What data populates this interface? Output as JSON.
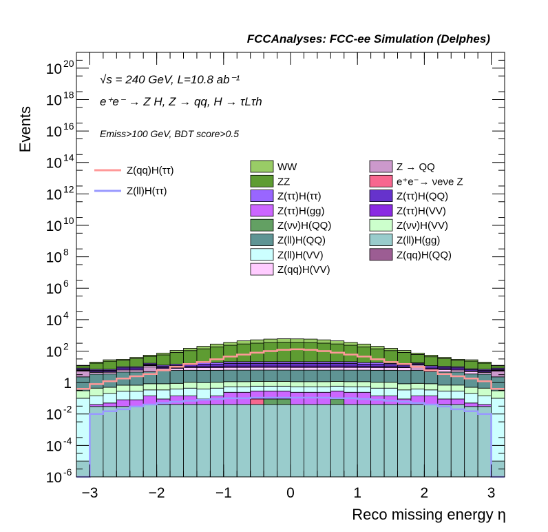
{
  "title": "FCCAnalyses: FCC-ee Simulation (Delphes)",
  "annotations": {
    "line1": "√s = 240 GeV, L=10.8 ab⁻¹",
    "line2": "e⁺e⁻ → Z H, Z → qq, H → τLτh",
    "line3": "Emiss>100 GeV, BDT score>0.5"
  },
  "chart_data": {
    "type": "bar",
    "xlabel": "Reco missing energy η",
    "ylabel": "Events",
    "xlim": [
      -3.2,
      3.2
    ],
    "ylim": [
      1e-06,
      1e+21
    ],
    "ylog": true,
    "xticks": [
      -3,
      -2,
      -1,
      0,
      1,
      2,
      3
    ],
    "xtick_labels": [
      "−3",
      "−2",
      "−1",
      "0",
      "1",
      "2",
      "3"
    ],
    "yticks": [
      {
        "exp": -6,
        "label": "10",
        "sup": "-6"
      },
      {
        "exp": -4,
        "label": "10",
        "sup": "-4"
      },
      {
        "exp": -2,
        "label": "10",
        "sup": "-2"
      },
      {
        "exp": 0,
        "label": "1",
        "sup": ""
      },
      {
        "exp": 2,
        "label": "10",
        "sup": "2"
      },
      {
        "exp": 4,
        "label": "10",
        "sup": "4"
      },
      {
        "exp": 6,
        "label": "10",
        "sup": "6"
      },
      {
        "exp": 8,
        "label": "10",
        "sup": "8"
      },
      {
        "exp": 10,
        "label": "10",
        "sup": "10"
      },
      {
        "exp": 12,
        "label": "10",
        "sup": "12"
      },
      {
        "exp": 14,
        "label": "10",
        "sup": "14"
      },
      {
        "exp": 16,
        "label": "10",
        "sup": "16"
      },
      {
        "exp": 18,
        "label": "10",
        "sup": "18"
      },
      {
        "exp": 20,
        "label": "10",
        "sup": "20"
      }
    ],
    "bin_edges": [
      -3.2,
      -3.0,
      -2.8,
      -2.6,
      -2.4,
      -2.2,
      -2.0,
      -1.8,
      -1.6,
      -1.4,
      -1.2,
      -1.0,
      -0.8,
      -0.6,
      -0.4,
      -0.2,
      0.0,
      0.2,
      0.4,
      0.6,
      0.8,
      1.0,
      1.2,
      1.4,
      1.6,
      1.8,
      2.0,
      2.2,
      2.4,
      2.6,
      2.8,
      3.0,
      3.2
    ],
    "stack_totals": [
      12,
      20,
      28,
      30,
      40,
      55,
      75,
      110,
      150,
      200,
      280,
      360,
      450,
      520,
      580,
      610,
      600,
      580,
      520,
      450,
      360,
      280,
      200,
      150,
      110,
      75,
      55,
      40,
      30,
      28,
      20,
      12
    ],
    "series": [
      {
        "name": "Z(ll)H(gg)",
        "color": "#99cccc",
        "values": [
          1e-05,
          0.03,
          0.03,
          0.03,
          0.03,
          0.04,
          0.04,
          0.04,
          0.04,
          0.04,
          0.04,
          0.04,
          0.04,
          0.04,
          0.04,
          0.04,
          0.04,
          0.04,
          0.04,
          0.04,
          0.04,
          0.04,
          0.04,
          0.04,
          0.04,
          0.04,
          0.04,
          0.04,
          0.04,
          0.03,
          0.03,
          1e-05
        ]
      },
      {
        "name": "Z(qq)H(QQ)",
        "color": "#9c5d93",
        "values": [
          0,
          0,
          0,
          0,
          0,
          0,
          0,
          0,
          0,
          0,
          0,
          0,
          0,
          0,
          0,
          0,
          0,
          0,
          0,
          0.0001,
          0,
          0,
          0,
          0,
          0,
          0,
          0,
          0,
          0,
          0,
          0,
          0
        ]
      },
      {
        "name": "e⁺e⁻→ νeνe Z",
        "color": "#f7678f",
        "values": [
          0,
          0,
          0,
          0,
          0,
          0,
          0,
          0,
          0,
          0,
          0,
          0,
          0,
          0.05,
          0,
          0,
          0,
          0,
          0,
          0,
          0,
          0,
          0,
          0,
          0,
          0,
          0,
          0,
          0,
          0,
          0,
          0
        ]
      },
      {
        "name": "Z(νν)H(QQ)",
        "color": "#63a063",
        "values": [
          0,
          0,
          0,
          0,
          0,
          0,
          0,
          0,
          0,
          0,
          0,
          0,
          0,
          0,
          0.05,
          0.05,
          0,
          0,
          0,
          0.05,
          0,
          0,
          0,
          0,
          0,
          0,
          0,
          0,
          0,
          0,
          0,
          0
        ]
      },
      {
        "name": "Z(ττ)H(gg)",
        "color": "#cc66ff",
        "values": [
          0,
          0.01,
          0.02,
          0.05,
          0.05,
          0.1,
          0.05,
          0.1,
          0.1,
          0.05,
          0.1,
          0.2,
          0.2,
          0.2,
          0.2,
          0.2,
          0.2,
          0.2,
          0.2,
          0.2,
          0.2,
          0.2,
          0.1,
          0.1,
          0.05,
          0.1,
          0.1,
          0.05,
          0.05,
          0.02,
          0.01,
          0
        ]
      },
      {
        "name": "Z(ll)H(VV)",
        "color": "#ccffff",
        "values": [
          0.1,
          0.1,
          0.15,
          0.2,
          0.2,
          0.2,
          0.25,
          0.25,
          0.3,
          0.3,
          0.3,
          0.3,
          0.3,
          0.3,
          0.3,
          0.3,
          0.3,
          0.3,
          0.3,
          0.3,
          0.3,
          0.3,
          0.3,
          0.3,
          0.25,
          0.25,
          0.2,
          0.2,
          0.2,
          0.15,
          0.1,
          0.1
        ]
      },
      {
        "name": "Z(νν)H(VV)",
        "color": "#ccffcc",
        "values": [
          0.2,
          0.3,
          0.3,
          0.4,
          0.4,
          0.5,
          0.5,
          0.5,
          0.6,
          0.6,
          0.6,
          0.6,
          0.6,
          0.6,
          0.6,
          0.6,
          0.6,
          0.6,
          0.6,
          0.6,
          0.6,
          0.6,
          0.6,
          0.6,
          0.5,
          0.5,
          0.5,
          0.4,
          0.4,
          0.3,
          0.3,
          0.2
        ]
      },
      {
        "name": "Z(ll)H(QQ)",
        "color": "#5f9494",
        "values": [
          2,
          3,
          3,
          4,
          4,
          4,
          5,
          5,
          5,
          5,
          5,
          5,
          5,
          5,
          5,
          5,
          5,
          5,
          5,
          5,
          5,
          5,
          5,
          5,
          5,
          5,
          4,
          4,
          4,
          3,
          3,
          2
        ]
      },
      {
        "name": "Z → QQ",
        "color": "#cc99cc",
        "values": [
          3,
          0,
          0,
          0,
          0,
          5,
          0,
          0,
          0,
          0,
          0,
          0,
          0,
          0,
          0,
          0,
          0,
          0,
          0,
          0,
          0,
          0,
          0,
          0,
          0,
          5,
          0,
          0,
          0,
          0,
          0,
          3
        ]
      },
      {
        "name": "Z(qq)H(VV)",
        "color": "#ffccff",
        "values": [
          0.5,
          1,
          1,
          1.5,
          1.5,
          2,
          2,
          2,
          3,
          3,
          3,
          3,
          3,
          3,
          3,
          3,
          3,
          3,
          3,
          3,
          3,
          3,
          3,
          3,
          3,
          2,
          2,
          2,
          1.5,
          1.5,
          1,
          0.5
        ]
      },
      {
        "name": "Z(ττ)H(VV)",
        "color": "#8a2be2",
        "values": [
          0.5,
          0.5,
          0.5,
          1,
          1,
          1,
          1,
          1,
          1.5,
          1.5,
          1.5,
          2,
          2,
          2,
          2,
          2,
          2,
          2,
          2,
          2,
          2,
          1.5,
          1.5,
          1.5,
          1,
          1,
          1,
          1,
          1,
          0.5,
          0.5,
          0.5
        ]
      },
      {
        "name": "Z(ττ)H(QQ)",
        "color": "#6633cc",
        "values": [
          1,
          1,
          1,
          1.5,
          1.5,
          2,
          2,
          3,
          3,
          4,
          4,
          5,
          5,
          5,
          5,
          5,
          5,
          5,
          5,
          5,
          5,
          4,
          4,
          3,
          3,
          2,
          2,
          1.5,
          1.5,
          1,
          1,
          1
        ]
      },
      {
        "name": "Z(ττ)H(ττ)",
        "color": "#9966ff",
        "values": [
          1,
          1,
          1,
          1.5,
          1.5,
          2,
          2,
          3,
          3,
          4,
          4,
          5,
          5,
          5,
          5,
          5,
          5,
          5,
          5,
          5,
          5,
          4,
          4,
          3,
          3,
          2,
          2,
          1.5,
          1.5,
          1,
          1,
          1
        ]
      },
      {
        "name": "ZZ",
        "color": "#5e9c32",
        "values": null
      },
      {
        "name": "WW",
        "color": "#99cc66",
        "values": null
      }
    ],
    "lines": [
      {
        "name": "Z(qq)H(ττ)",
        "color": "#ff9999",
        "values": [
          0.4,
          0.8,
          1.2,
          1.8,
          2.5,
          3.5,
          6,
          10,
          15,
          20,
          30,
          45,
          60,
          80,
          100,
          120,
          130,
          120,
          100,
          80,
          60,
          45,
          30,
          20,
          15,
          10,
          6,
          3.5,
          2.5,
          1.8,
          1.2,
          0.4
        ]
      },
      {
        "name": "Z(ll)H(ττ)",
        "color": "#9999ff",
        "values": [
          1e-06,
          0.01,
          0.015,
          0.02,
          0.03,
          0.04,
          0.05,
          0.06,
          0.07,
          0.08,
          0.09,
          0.1,
          0.1,
          0.11,
          0.11,
          0.11,
          0.11,
          0.11,
          0.11,
          0.1,
          0.1,
          0.09,
          0.08,
          0.07,
          0.06,
          0.05,
          0.04,
          0.03,
          0.02,
          0.015,
          0.01,
          1e-06
        ]
      }
    ],
    "legend": [
      {
        "name": "WW",
        "kind": "box",
        "color": "#99cc66"
      },
      {
        "name": "Z → QQ",
        "kind": "box",
        "color": "#cc99cc"
      },
      {
        "name": "ZZ",
        "kind": "box",
        "color": "#5e9c32"
      },
      {
        "name": "e⁺e⁻→ νeνe Z",
        "kind": "box",
        "color": "#f7678f"
      },
      {
        "name": "Z(ττ)H(ττ)",
        "kind": "box",
        "color": "#9966ff"
      },
      {
        "name": "Z(ττ)H(QQ)",
        "kind": "box",
        "color": "#6633cc"
      },
      {
        "name": "Z(ττ)H(gg)",
        "kind": "box",
        "color": "#cc66ff"
      },
      {
        "name": "Z(ττ)H(VV)",
        "kind": "box",
        "color": "#8a2be2"
      },
      {
        "name": "Z(νν)H(QQ)",
        "kind": "box",
        "color": "#63a063"
      },
      {
        "name": "Z(νν)H(VV)",
        "kind": "box",
        "color": "#ccffcc"
      },
      {
        "name": "Z(ll)H(QQ)",
        "kind": "box",
        "color": "#5f9494"
      },
      {
        "name": "Z(ll)H(gg)",
        "kind": "box",
        "color": "#99cccc"
      },
      {
        "name": "Z(ll)H(VV)",
        "kind": "box",
        "color": "#ccffff"
      },
      {
        "name": "Z(qq)H(QQ)",
        "kind": "box",
        "color": "#9c5d93"
      },
      {
        "name": "Z(qq)H(VV)",
        "kind": "box",
        "color": "#ffccff"
      },
      {
        "name": "Z(qq)H(ττ)",
        "kind": "line",
        "color": "#ff9999"
      },
      {
        "name": "Z(ll)H(ττ)",
        "kind": "line",
        "color": "#9999ff"
      }
    ]
  }
}
